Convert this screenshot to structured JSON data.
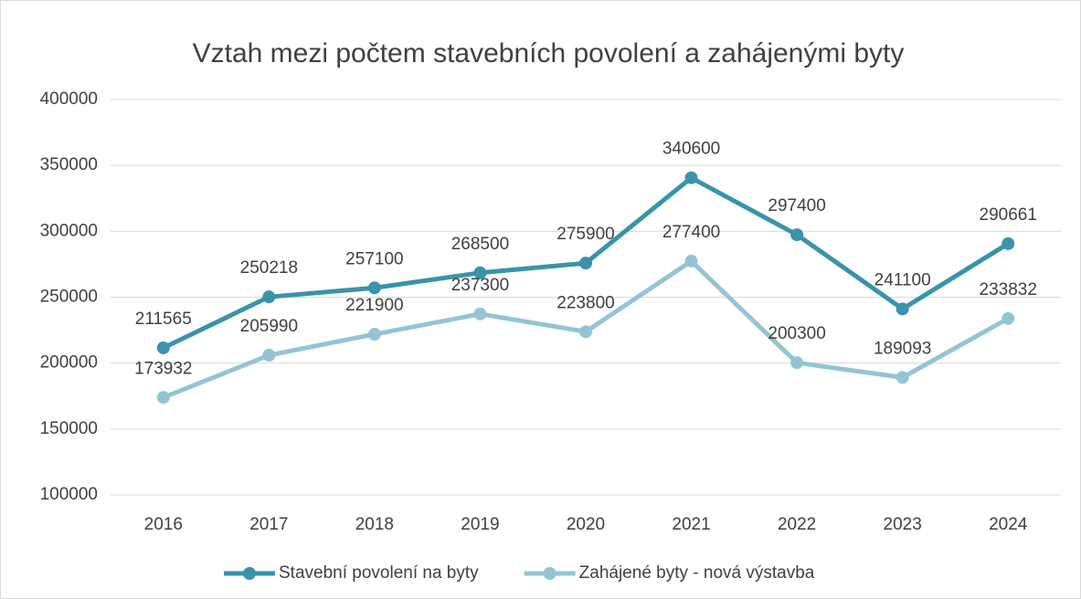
{
  "chart_data": {
    "type": "line",
    "title": "Vztah mezi počtem stavebních povolení a zahájenými byty",
    "categories": [
      "2016",
      "2017",
      "2018",
      "2019",
      "2020",
      "2021",
      "2022",
      "2023",
      "2024"
    ],
    "series": [
      {
        "name": "Stavební povolení na byty",
        "color": "#3a93a8",
        "values": [
          211565,
          250218,
          257100,
          268500,
          275900,
          340600,
          297400,
          241100,
          290661
        ]
      },
      {
        "name": "Zahájené byty - nová výstavba",
        "color": "#94c4d4",
        "values": [
          173932,
          205990,
          221900,
          237300,
          223800,
          277400,
          200300,
          189093,
          233832
        ]
      }
    ],
    "ylim": [
      100000,
      400000
    ],
    "yticks": [
      100000,
      150000,
      200000,
      250000,
      300000,
      350000,
      400000
    ],
    "grid": true,
    "legend": "bottom"
  }
}
